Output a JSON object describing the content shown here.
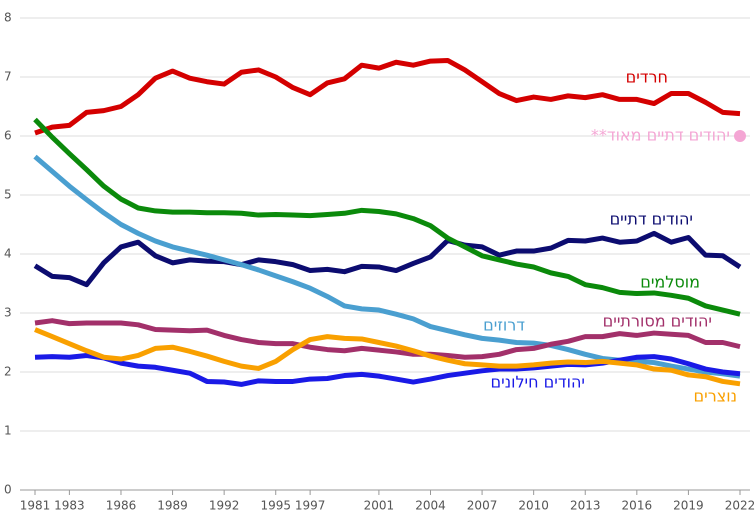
{
  "chart_data": {
    "type": "line",
    "x": [
      1981,
      1982,
      1983,
      1984,
      1985,
      1986,
      1987,
      1988,
      1989,
      1990,
      1991,
      1992,
      1993,
      1994,
      1995,
      1996,
      1997,
      1998,
      1999,
      2000,
      2001,
      2002,
      2003,
      2004,
      2005,
      2006,
      2007,
      2008,
      2009,
      2010,
      2011,
      2012,
      2013,
      2014,
      2015,
      2016,
      2017,
      2018,
      2019,
      2020,
      2021,
      2022
    ],
    "xlim": [
      1981,
      2022
    ],
    "xticks": [
      1981,
      1983,
      1986,
      1989,
      1992,
      1995,
      1997,
      2001,
      2004,
      2007,
      2010,
      2013,
      2016,
      2019,
      2022
    ],
    "ylim": [
      0,
      8
    ],
    "yticks": [
      0,
      1,
      2,
      3,
      4,
      5,
      6,
      7,
      8
    ],
    "grid": true,
    "series": [
      {
        "name": "חרדים",
        "color": "#d40000",
        "values": [
          6.05,
          6.15,
          6.18,
          6.4,
          6.43,
          6.5,
          6.7,
          6.98,
          7.1,
          6.98,
          6.92,
          6.88,
          7.08,
          7.12,
          7.0,
          6.82,
          6.7,
          6.9,
          6.97,
          7.2,
          7.15,
          7.25,
          7.2,
          7.27,
          7.28,
          7.12,
          6.92,
          6.72,
          6.6,
          6.66,
          6.62,
          6.68,
          6.65,
          6.7,
          6.62,
          6.62,
          6.55,
          6.72,
          6.72,
          6.57,
          6.4,
          6.38
        ]
      },
      {
        "name": "יהודים דתיים",
        "color": "#0c0c70",
        "values": [
          3.8,
          3.62,
          3.6,
          3.48,
          3.85,
          4.12,
          4.2,
          3.97,
          3.85,
          3.9,
          3.88,
          3.87,
          3.82,
          3.9,
          3.87,
          3.82,
          3.72,
          3.74,
          3.7,
          3.79,
          3.78,
          3.72,
          3.84,
          3.95,
          4.23,
          4.15,
          4.12,
          3.98,
          4.05,
          4.05,
          4.1,
          4.23,
          4.22,
          4.27,
          4.2,
          4.22,
          4.35,
          4.2,
          4.28,
          3.98,
          3.97,
          3.78
        ]
      },
      {
        "name": "מוסלמים",
        "color": "#0b8a0b",
        "values": [
          6.28,
          5.98,
          5.7,
          5.43,
          5.15,
          4.93,
          4.78,
          4.73,
          4.71,
          4.71,
          4.7,
          4.7,
          4.69,
          4.66,
          4.67,
          4.66,
          4.65,
          4.67,
          4.69,
          4.74,
          4.72,
          4.68,
          4.6,
          4.48,
          4.27,
          4.12,
          3.97,
          3.9,
          3.83,
          3.78,
          3.68,
          3.62,
          3.48,
          3.43,
          3.35,
          3.33,
          3.34,
          3.3,
          3.25,
          3.12,
          3.05,
          2.98
        ]
      },
      {
        "name": "דרוזים",
        "color": "#4a9fd0",
        "values": [
          5.65,
          5.4,
          5.15,
          4.92,
          4.7,
          4.5,
          4.35,
          4.22,
          4.12,
          4.05,
          3.98,
          3.9,
          3.82,
          3.73,
          3.63,
          3.53,
          3.42,
          3.28,
          3.12,
          3.07,
          3.05,
          2.98,
          2.9,
          2.77,
          2.7,
          2.63,
          2.57,
          2.54,
          2.5,
          2.49,
          2.45,
          2.38,
          2.3,
          2.23,
          2.2,
          2.18,
          2.16,
          2.1,
          2.05,
          2.0,
          1.97,
          1.93
        ]
      },
      {
        "name": "יהודים מסורתיים",
        "color": "#a2306a",
        "values": [
          2.83,
          2.87,
          2.82,
          2.83,
          2.83,
          2.83,
          2.8,
          2.72,
          2.71,
          2.7,
          2.71,
          2.62,
          2.55,
          2.5,
          2.48,
          2.48,
          2.42,
          2.38,
          2.36,
          2.4,
          2.37,
          2.34,
          2.3,
          2.3,
          2.28,
          2.25,
          2.26,
          2.3,
          2.38,
          2.4,
          2.47,
          2.52,
          2.6,
          2.6,
          2.65,
          2.62,
          2.66,
          2.64,
          2.62,
          2.5,
          2.5,
          2.43
        ]
      },
      {
        "name": "יהודים חילונים",
        "color": "#1a1ae6",
        "values": [
          2.25,
          2.26,
          2.25,
          2.28,
          2.24,
          2.15,
          2.1,
          2.08,
          2.03,
          1.98,
          1.84,
          1.83,
          1.79,
          1.85,
          1.84,
          1.84,
          1.88,
          1.89,
          1.94,
          1.96,
          1.93,
          1.88,
          1.83,
          1.88,
          1.94,
          1.98,
          2.02,
          2.05,
          2.05,
          2.07,
          2.1,
          2.13,
          2.12,
          2.15,
          2.2,
          2.25,
          2.26,
          2.22,
          2.14,
          2.05,
          2.0,
          1.97
        ]
      },
      {
        "name": "נוצרים",
        "color": "#f9a000",
        "values": [
          2.72,
          2.6,
          2.48,
          2.36,
          2.25,
          2.22,
          2.28,
          2.4,
          2.42,
          2.35,
          2.27,
          2.18,
          2.1,
          2.06,
          2.18,
          2.38,
          2.55,
          2.6,
          2.57,
          2.56,
          2.5,
          2.44,
          2.36,
          2.27,
          2.2,
          2.14,
          2.12,
          2.1,
          2.1,
          2.12,
          2.15,
          2.17,
          2.16,
          2.18,
          2.15,
          2.12,
          2.05,
          2.03,
          1.95,
          1.92,
          1.84,
          1.8
        ]
      }
    ],
    "points": [
      {
        "name": "יהודים דתיים מאוד**",
        "color": "#f4a6d4",
        "x": 2022,
        "y": 6.0
      }
    ]
  }
}
